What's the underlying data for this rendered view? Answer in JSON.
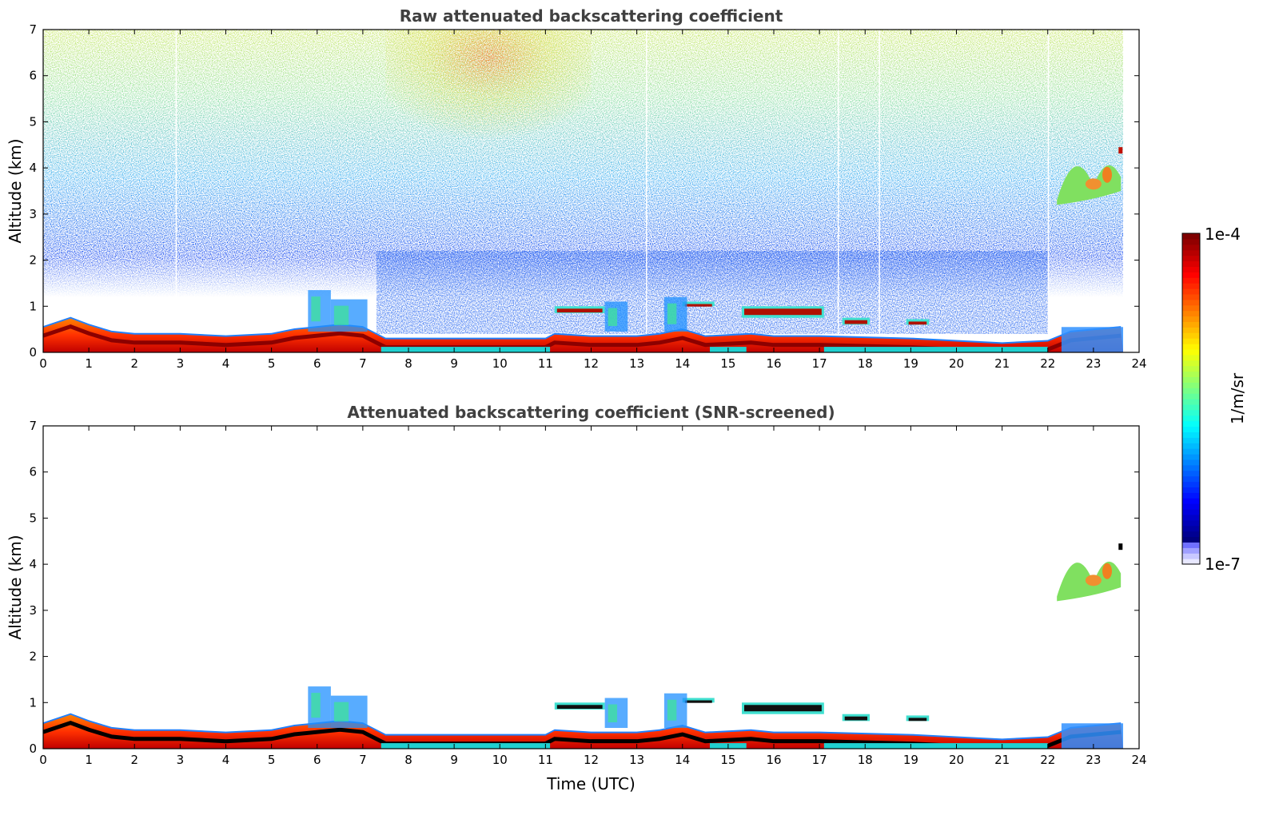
{
  "chart_data": [
    {
      "type": "heatmap",
      "title": "Raw attenuated backscattering coefficient",
      "xlabel": "",
      "ylabel": "Altitude (km)",
      "xlim": [
        0,
        24
      ],
      "ylim": [
        0,
        7
      ],
      "xticks": [
        "0",
        "1",
        "2",
        "3",
        "4",
        "5",
        "6",
        "7",
        "8",
        "9",
        "10",
        "11",
        "12",
        "13",
        "14",
        "15",
        "16",
        "17",
        "18",
        "19",
        "20",
        "21",
        "22",
        "23",
        "24"
      ],
      "yticks": [
        "0",
        "1",
        "2",
        "3",
        "4",
        "5",
        "6",
        "7"
      ],
      "data_end_time": 23.65,
      "boundary_layer_top_km": [
        {
          "t": 0,
          "z": 0.5
        },
        {
          "t": 0.6,
          "z": 0.7
        },
        {
          "t": 1,
          "z": 0.55
        },
        {
          "t": 1.5,
          "z": 0.4
        },
        {
          "t": 2,
          "z": 0.35
        },
        {
          "t": 3,
          "z": 0.35
        },
        {
          "t": 4,
          "z": 0.3
        },
        {
          "t": 5,
          "z": 0.35
        },
        {
          "t": 5.5,
          "z": 0.45
        },
        {
          "t": 6,
          "z": 0.5
        },
        {
          "t": 6.5,
          "z": 0.55
        },
        {
          "t": 7,
          "z": 0.5
        },
        {
          "t": 7.5,
          "z": 0.25
        },
        {
          "t": 9,
          "z": 0.25
        },
        {
          "t": 11,
          "z": 0.25
        },
        {
          "t": 11.2,
          "z": 0.35
        },
        {
          "t": 12,
          "z": 0.3
        },
        {
          "t": 13,
          "z": 0.3
        },
        {
          "t": 13.5,
          "z": 0.35
        },
        {
          "t": 14,
          "z": 0.45
        },
        {
          "t": 14.5,
          "z": 0.3
        },
        {
          "t": 15.5,
          "z": 0.35
        },
        {
          "t": 16,
          "z": 0.3
        },
        {
          "t": 17,
          "z": 0.3
        },
        {
          "t": 19,
          "z": 0.25
        },
        {
          "t": 20,
          "z": 0.2
        },
        {
          "t": 21,
          "z": 0.15
        },
        {
          "t": 22,
          "z": 0.2
        },
        {
          "t": 22.5,
          "z": 0.4
        },
        {
          "t": 23.6,
          "z": 0.5
        }
      ],
      "cloud_layers": [
        {
          "t_start": 11.2,
          "t_end": 12.3,
          "z_bottom": 0.85,
          "z_top": 1.0
        },
        {
          "t_start": 14.0,
          "t_end": 14.7,
          "z_bottom": 1.0,
          "z_top": 1.1
        },
        {
          "t_start": 15.3,
          "t_end": 17.1,
          "z_bottom": 0.75,
          "z_top": 1.0
        },
        {
          "t_start": 17.5,
          "t_end": 18.1,
          "z_bottom": 0.6,
          "z_top": 0.75
        },
        {
          "t_start": 18.9,
          "t_end": 19.4,
          "z_bottom": 0.6,
          "z_top": 0.72
        },
        {
          "t_start": 22.2,
          "t_end": 23.6,
          "z_bottom": 3.2,
          "z_top": 4.5
        }
      ]
    },
    {
      "type": "heatmap",
      "title": "Attenuated backscattering coefficient (SNR-screened)",
      "xlabel": "Time (UTC)",
      "ylabel": "Altitude (km)",
      "xlim": [
        0,
        24
      ],
      "ylim": [
        0,
        7
      ],
      "xticks": [
        "0",
        "1",
        "2",
        "3",
        "4",
        "5",
        "6",
        "7",
        "8",
        "9",
        "10",
        "11",
        "12",
        "13",
        "14",
        "15",
        "16",
        "17",
        "18",
        "19",
        "20",
        "21",
        "22",
        "23",
        "24"
      ],
      "yticks": [
        "0",
        "1",
        "2",
        "3",
        "4",
        "5",
        "6",
        "7"
      ],
      "data_end_time": 23.65
    }
  ],
  "colorbar": {
    "max_label": "1e-4",
    "min_label": "1e-7",
    "unit_label": "1/m/sr",
    "colormap": [
      "#00007f",
      "#0000ff",
      "#007fff",
      "#00ffff",
      "#7fff7f",
      "#ffff00",
      "#ff7f00",
      "#ff0000",
      "#7f0000"
    ],
    "low_end_colors": [
      "#e8e8ff",
      "#c8c8ff",
      "#a0a0ff",
      "#7070ff"
    ]
  }
}
